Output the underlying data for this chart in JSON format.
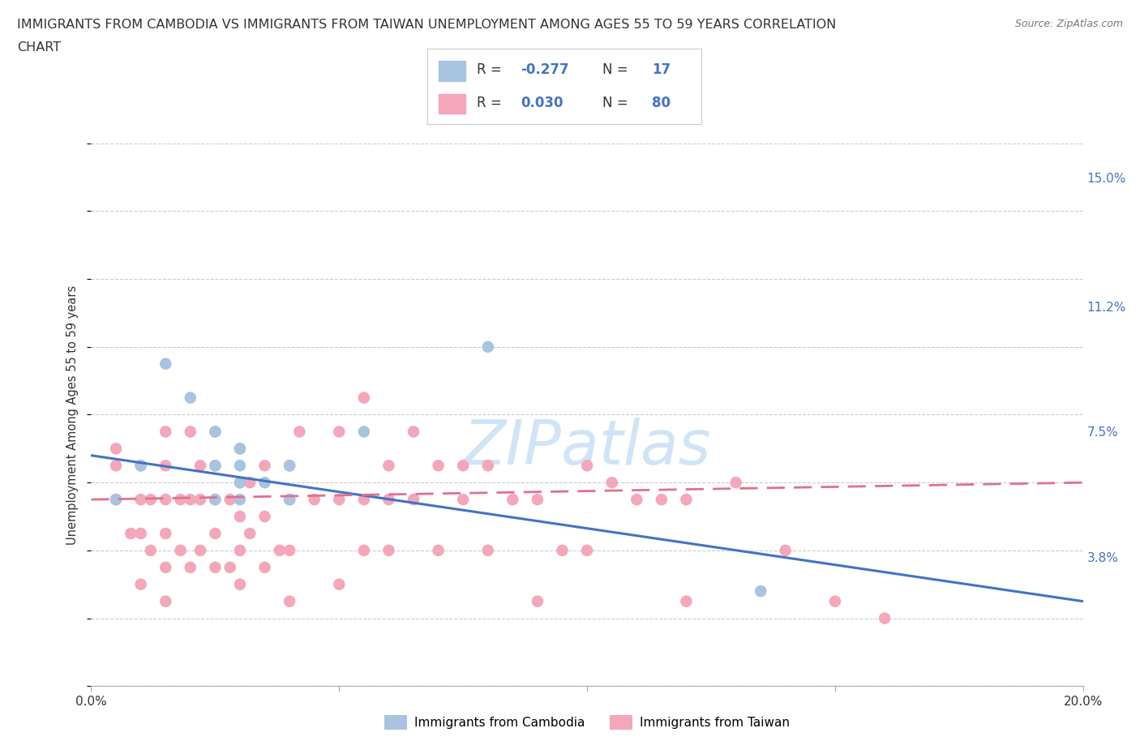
{
  "title_line1": "IMMIGRANTS FROM CAMBODIA VS IMMIGRANTS FROM TAIWAN UNEMPLOYMENT AMONG AGES 55 TO 59 YEARS CORRELATION",
  "title_line2": "CHART",
  "source": "Source: ZipAtlas.com",
  "ylabel": "Unemployment Among Ages 55 to 59 years",
  "xlim": [
    0.0,
    0.2
  ],
  "ylim": [
    0.0,
    0.16
  ],
  "xtick_positions": [
    0.0,
    0.05,
    0.1,
    0.15,
    0.2
  ],
  "xticklabels": [
    "0.0%",
    "",
    "",
    "",
    "20.0%"
  ],
  "ytick_positions": [
    0.038,
    0.075,
    0.112,
    0.15
  ],
  "ytick_labels": [
    "3.8%",
    "7.5%",
    "11.2%",
    "15.0%"
  ],
  "background_color": "#ffffff",
  "grid_color": "#cccccc",
  "watermark_text": "ZIPatlas",
  "watermark_color": "#d0e4f7",
  "cambodia_color": "#a8c4e0",
  "taiwan_color": "#f4a7b9",
  "cambodia_line_color": "#4472c4",
  "taiwan_line_color": "#e07090",
  "R_cambodia": -0.277,
  "N_cambodia": 17,
  "R_taiwan": 0.03,
  "N_taiwan": 80,
  "legend_label_color": "#333333",
  "legend_value_color": "#4472c4",
  "cambodia_scatter_x": [
    0.005,
    0.01,
    0.015,
    0.02,
    0.025,
    0.025,
    0.025,
    0.03,
    0.03,
    0.03,
    0.03,
    0.035,
    0.04,
    0.04,
    0.055,
    0.08,
    0.135
  ],
  "cambodia_scatter_y": [
    0.055,
    0.065,
    0.095,
    0.085,
    0.065,
    0.055,
    0.075,
    0.055,
    0.06,
    0.065,
    0.07,
    0.06,
    0.055,
    0.065,
    0.075,
    0.1,
    0.028
  ],
  "taiwan_scatter_x": [
    0.005,
    0.005,
    0.005,
    0.008,
    0.01,
    0.01,
    0.01,
    0.01,
    0.012,
    0.012,
    0.015,
    0.015,
    0.015,
    0.015,
    0.015,
    0.015,
    0.018,
    0.018,
    0.02,
    0.02,
    0.02,
    0.022,
    0.022,
    0.022,
    0.025,
    0.025,
    0.025,
    0.025,
    0.025,
    0.028,
    0.028,
    0.03,
    0.03,
    0.03,
    0.03,
    0.03,
    0.032,
    0.032,
    0.035,
    0.035,
    0.035,
    0.038,
    0.04,
    0.04,
    0.04,
    0.04,
    0.042,
    0.045,
    0.05,
    0.05,
    0.05,
    0.055,
    0.055,
    0.055,
    0.06,
    0.06,
    0.06,
    0.065,
    0.065,
    0.07,
    0.07,
    0.075,
    0.075,
    0.08,
    0.08,
    0.085,
    0.09,
    0.09,
    0.095,
    0.1,
    0.1,
    0.105,
    0.11,
    0.115,
    0.12,
    0.12,
    0.13,
    0.14,
    0.15,
    0.16
  ],
  "taiwan_scatter_y": [
    0.055,
    0.065,
    0.07,
    0.045,
    0.03,
    0.045,
    0.055,
    0.065,
    0.04,
    0.055,
    0.025,
    0.035,
    0.045,
    0.055,
    0.065,
    0.075,
    0.04,
    0.055,
    0.035,
    0.055,
    0.075,
    0.04,
    0.055,
    0.065,
    0.035,
    0.045,
    0.055,
    0.065,
    0.075,
    0.035,
    0.055,
    0.03,
    0.04,
    0.05,
    0.06,
    0.07,
    0.045,
    0.06,
    0.035,
    0.05,
    0.065,
    0.04,
    0.025,
    0.04,
    0.055,
    0.065,
    0.075,
    0.055,
    0.03,
    0.055,
    0.075,
    0.04,
    0.055,
    0.085,
    0.04,
    0.055,
    0.065,
    0.055,
    0.075,
    0.04,
    0.065,
    0.055,
    0.065,
    0.04,
    0.065,
    0.055,
    0.025,
    0.055,
    0.04,
    0.04,
    0.065,
    0.06,
    0.055,
    0.055,
    0.025,
    0.055,
    0.06,
    0.04,
    0.025,
    0.02
  ]
}
